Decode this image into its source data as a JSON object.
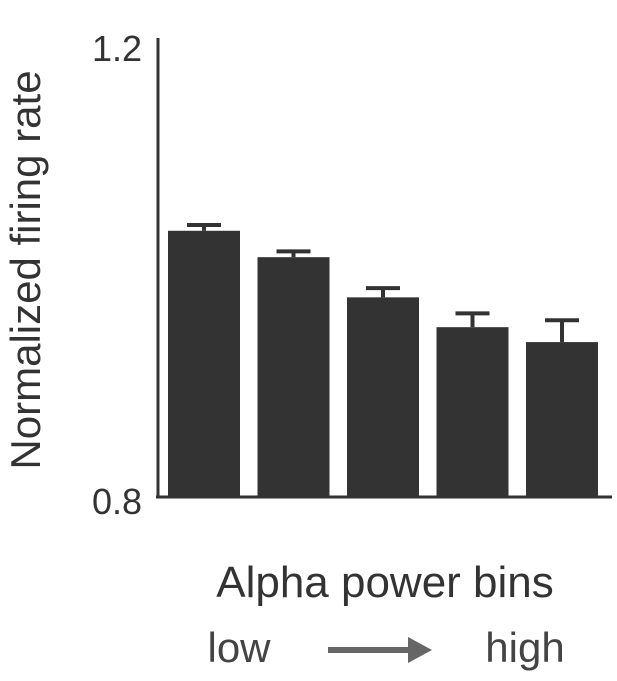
{
  "chart_data": {
    "type": "bar",
    "title": "",
    "xlabel": "Alpha power bins",
    "ylabel": "Normalized firing rate",
    "ylim": [
      0.8,
      1.2
    ],
    "yticks": [
      "0.8",
      "1.2"
    ],
    "categories": [
      "",
      "",
      "",
      "",
      ""
    ],
    "values": [
      1.032,
      1.009,
      0.974,
      0.948,
      0.935
    ],
    "errors": [
      0.005,
      0.005,
      0.008,
      0.012,
      0.019
    ],
    "grid": false,
    "legend": "none",
    "x_direction": {
      "low_label": "low",
      "high_label": "high"
    }
  },
  "colors": {
    "bar": "#333333",
    "axis": "#333333",
    "arrow": "#666666"
  }
}
